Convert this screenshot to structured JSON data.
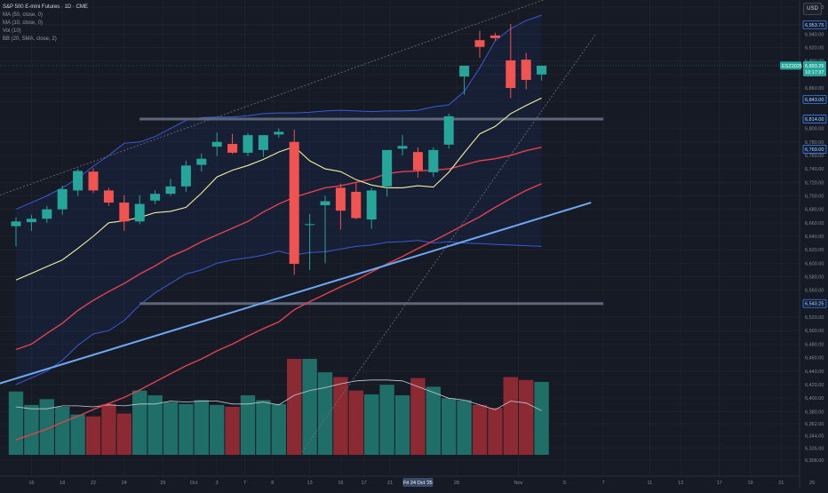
{
  "legend": {
    "symbol": "S&P 500 E-mini Futures · 1D · CME",
    "lines": [
      "MA (50, close, 0)",
      "MA (10, close, 0)",
      "Vol (10)",
      "BB (20, SMA, close, 2)"
    ]
  },
  "currency_button": "USD",
  "colors": {
    "background": "#161a25",
    "up": "#26a69a",
    "down": "#f05350",
    "vol_up": "#1f6e68",
    "vol_down": "#8c2a34",
    "ma10": "#f2f0a0",
    "ma50": "#e2424f",
    "bb": "#3a5ad8",
    "trend": "#6ea8f5",
    "support": "#5d6579",
    "grid": "#1e222d",
    "axis_text": "#868993"
  },
  "chart_data": {
    "type": "candlestick",
    "title": "S&P 500 E-mini Futures · 1D · CME",
    "ylim": [
      6300,
      6980
    ],
    "y_ticks": [
      "6,980.00",
      "6,940.00",
      "6,920.00",
      "6,900.00",
      "6,880.00",
      "6,860.00",
      "6,840.00",
      "6,800.00",
      "6,780.00",
      "6,760.00",
      "6,740.00",
      "6,720.00",
      "6,700.00",
      "6,680.00",
      "6,660.00",
      "6,640.00",
      "6,620.00",
      "6,600.00",
      "6,580.00",
      "6,560.00",
      "6,520.00",
      "6,500.00",
      "6,480.00",
      "6,460.00",
      "6,440.00",
      "6,420.00",
      "6,400.00",
      "6,380.00",
      "6,362.00",
      "6,344.00",
      "6,326.00",
      "6,308.00"
    ],
    "x_ticks": [
      "16",
      "18",
      "22",
      "24",
      "29",
      "Oct",
      "3",
      "7",
      "8",
      "13",
      "16",
      "17",
      "21",
      "28",
      "Nov",
      "5",
      "7",
      "11",
      "13",
      "17",
      "19",
      "21",
      "25"
    ],
    "crosshair_date": "Fri 24 Oct '25",
    "price_labels": [
      {
        "text": "6,953.75",
        "value": 6953.75,
        "style": "outline"
      },
      {
        "text": "6,893.25",
        "value": 6893.25,
        "style": "fill-green",
        "secondary": "10:17:37"
      },
      {
        "text": "ESZ2025",
        "value": 6893.25,
        "style": "fill-green-small"
      },
      {
        "text": "6,843.00",
        "value": 6843,
        "style": "outline"
      },
      {
        "text": "6,814.00",
        "value": 6814,
        "style": "outline"
      },
      {
        "text": "6,769.00",
        "value": 6769,
        "style": "outline"
      },
      {
        "text": "6,540.25",
        "value": 6540.25,
        "style": "outline"
      }
    ],
    "support_levels": [
      6814,
      6540.25
    ],
    "current_price": 6893.25,
    "candles": [
      {
        "o": 6655,
        "h": 6668,
        "l": 6625,
        "c": 6662
      },
      {
        "o": 6661,
        "h": 6672,
        "l": 6648,
        "c": 6666
      },
      {
        "o": 6666,
        "h": 6685,
        "l": 6660,
        "c": 6680
      },
      {
        "o": 6680,
        "h": 6715,
        "l": 6672,
        "c": 6710
      },
      {
        "o": 6708,
        "h": 6740,
        "l": 6700,
        "c": 6737
      },
      {
        "o": 6736,
        "h": 6741,
        "l": 6704,
        "c": 6708
      },
      {
        "o": 6708,
        "h": 6712,
        "l": 6685,
        "c": 6690
      },
      {
        "o": 6690,
        "h": 6701,
        "l": 6648,
        "c": 6662
      },
      {
        "o": 6662,
        "h": 6701,
        "l": 6658,
        "c": 6688
      },
      {
        "o": 6693,
        "h": 6708,
        "l": 6688,
        "c": 6703
      },
      {
        "o": 6703,
        "h": 6725,
        "l": 6700,
        "c": 6714
      },
      {
        "o": 6714,
        "h": 6752,
        "l": 6706,
        "c": 6745
      },
      {
        "o": 6746,
        "h": 6763,
        "l": 6736,
        "c": 6755
      },
      {
        "o": 6773,
        "h": 6794,
        "l": 6759,
        "c": 6780
      },
      {
        "o": 6777,
        "h": 6792,
        "l": 6762,
        "c": 6764
      },
      {
        "o": 6764,
        "h": 6793,
        "l": 6759,
        "c": 6790
      },
      {
        "o": 6768,
        "h": 6790,
        "l": 6758,
        "c": 6790
      },
      {
        "o": 6791,
        "h": 6800,
        "l": 6786,
        "c": 6795
      },
      {
        "o": 6780,
        "h": 6798,
        "l": 6583,
        "c": 6599
      },
      {
        "o": 6658,
        "h": 6673,
        "l": 6590,
        "c": 6658
      },
      {
        "o": 6686,
        "h": 6700,
        "l": 6600,
        "c": 6692
      },
      {
        "o": 6712,
        "h": 6718,
        "l": 6650,
        "c": 6678
      },
      {
        "o": 6706,
        "h": 6720,
        "l": 6665,
        "c": 6667
      },
      {
        "o": 6665,
        "h": 6712,
        "l": 6651,
        "c": 6708
      },
      {
        "o": 6714,
        "h": 6768,
        "l": 6699,
        "c": 6768
      },
      {
        "o": 6770,
        "h": 6790,
        "l": 6760,
        "c": 6774
      },
      {
        "o": 6765,
        "h": 6772,
        "l": 6727,
        "c": 6738
      },
      {
        "o": 6735,
        "h": 6772,
        "l": 6728,
        "c": 6768
      },
      {
        "o": 6776,
        "h": 6822,
        "l": 6770,
        "c": 6818
      },
      {
        "o": 6877,
        "h": 6892,
        "l": 6850,
        "c": 6893
      },
      {
        "o": 6931,
        "h": 6945,
        "l": 6905,
        "c": 6921
      },
      {
        "o": 6938,
        "h": 6942,
        "l": 6930,
        "c": 6934
      },
      {
        "o": 6901,
        "h": 6955,
        "l": 6845,
        "c": 6860
      },
      {
        "o": 6902,
        "h": 6912,
        "l": 6858,
        "c": 6872
      },
      {
        "o": 6880,
        "h": 6893,
        "l": 6871,
        "c": 6893
      }
    ],
    "volume": {
      "max": 100,
      "values": [
        66,
        52,
        58,
        50,
        42,
        40,
        53,
        43,
        67,
        62,
        55,
        53,
        57,
        52,
        50,
        62,
        57,
        53,
        100,
        100,
        86,
        81,
        67,
        63,
        73,
        62,
        80,
        71,
        59,
        57,
        52,
        49,
        81,
        78,
        76
      ],
      "ma": [
        50,
        48,
        48,
        51,
        51,
        50,
        52,
        51,
        53,
        53,
        56,
        55,
        56,
        56,
        53,
        53,
        55,
        52,
        62,
        67,
        70,
        74,
        77,
        78,
        78,
        77,
        71,
        65,
        59,
        57,
        52,
        47,
        56,
        54,
        46
      ]
    },
    "ma10": [
      6575,
      6585,
      6595,
      6605,
      6622,
      6640,
      6660,
      6663,
      6668,
      6675,
      6677,
      6683,
      6704,
      6728,
      6738,
      6745,
      6754,
      6765,
      6773,
      6752,
      6740,
      6736,
      6724,
      6716,
      6712,
      6712,
      6715,
      6713,
      6735,
      6764,
      6792,
      6803,
      6822,
      6834,
      6845
    ],
    "ma50": [
      6472,
      6480,
      6496,
      6511,
      6530,
      6545,
      6558,
      6570,
      6584,
      6596,
      6610,
      6620,
      6632,
      6642,
      6652,
      6662,
      6676,
      6688,
      6698,
      6705,
      6712,
      6715,
      6720,
      6725,
      6733,
      6736,
      6737,
      6738,
      6740,
      6746,
      6752,
      6755,
      6760,
      6767,
      6772
    ],
    "ma200": [
      6338,
      6346,
      6354,
      6364,
      6373,
      6383,
      6392,
      6401,
      6412,
      6424,
      6436,
      6448,
      6458,
      6470,
      6480,
      6492,
      6503,
      6513,
      6531,
      6543,
      6554,
      6565,
      6575,
      6587,
      6599,
      6610,
      6622,
      6633,
      6645,
      6657,
      6669,
      6683,
      6696,
      6708,
      6718
    ],
    "bb_upper": [
      6680,
      6690,
      6700,
      6712,
      6726,
      6744,
      6760,
      6778,
      6780,
      6788,
      6800,
      6812,
      6816,
      6817,
      6817,
      6819,
      6822,
      6823,
      6823,
      6824,
      6826,
      6827,
      6826,
      6825,
      6826,
      6826,
      6827,
      6832,
      6835,
      6855,
      6890,
      6930,
      6948,
      6960,
      6968
    ],
    "bb_lower": [
      6420,
      6430,
      6440,
      6456,
      6478,
      6495,
      6500,
      6515,
      6538,
      6556,
      6570,
      6584,
      6590,
      6600,
      6605,
      6608,
      6612,
      6618,
      6612,
      6616,
      6617,
      6621,
      6625,
      6627,
      6631,
      6632,
      6634,
      6630,
      6632,
      6630,
      6629,
      6628,
      6627,
      6626,
      6625
    ],
    "trend_line": [
      {
        "x": -3,
        "price": 6408
      },
      {
        "x": 37.2,
        "price": 6690
      }
    ],
    "channel_upper": [
      {
        "x": -3,
        "price": 6685
      },
      {
        "x": 35,
        "price": 6998
      }
    ],
    "channel_lower": [
      {
        "x": 18.5,
        "price": 6320
      },
      {
        "x": 37.5,
        "price": 6940
      }
    ]
  }
}
